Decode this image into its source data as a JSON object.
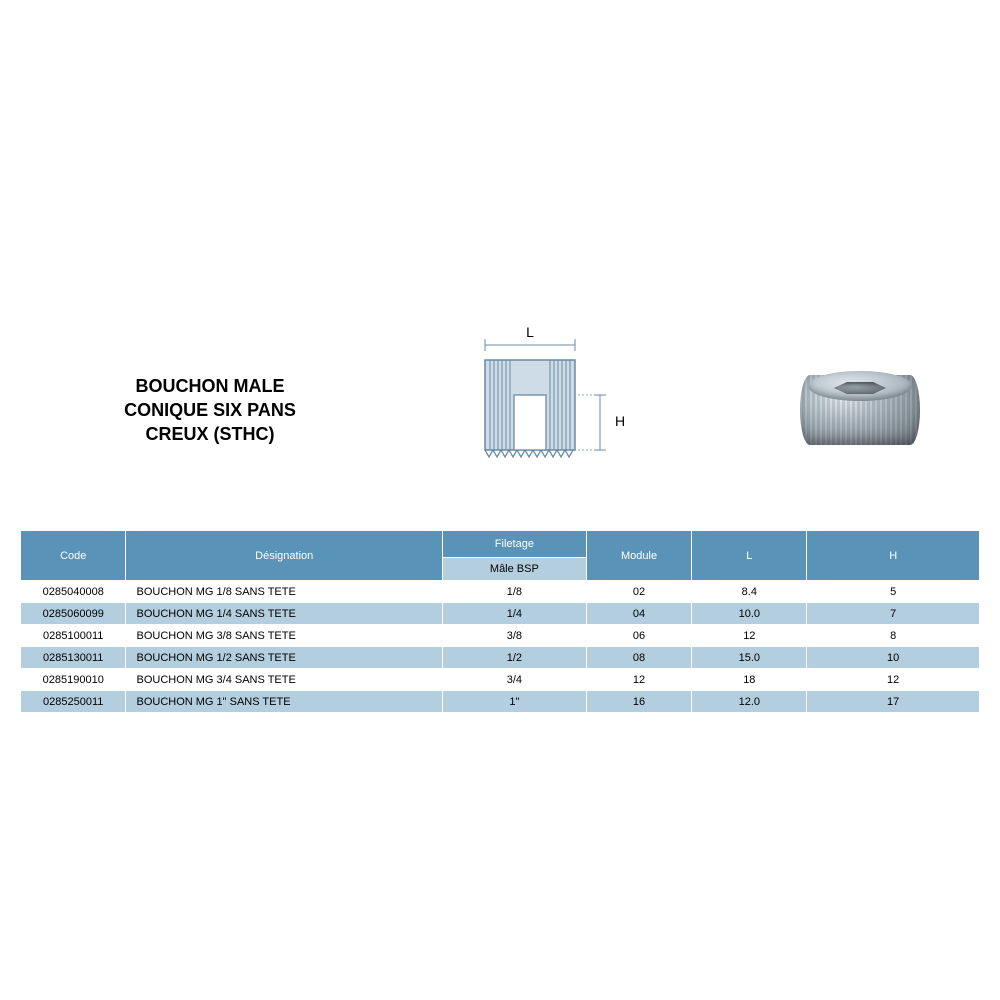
{
  "title": {
    "line1": "BOUCHON MALE",
    "line2": "CONIQUE SIX PANS",
    "line3": "CREUX (STHC)"
  },
  "diagram": {
    "label_L": "L",
    "label_H": "H",
    "stroke_color": "#6a8aa3",
    "fill_light": "#cddce7",
    "fill_dark": "#aec4d4"
  },
  "photo": {
    "alt": "bouchon-hex-socket-plug"
  },
  "table": {
    "header_bg": "#5a93b8",
    "header_fg": "#ffffff",
    "alt_row_bg": "#b3cedf",
    "columns": [
      {
        "key": "code",
        "label": "Code",
        "width_pct": 11,
        "align": "center"
      },
      {
        "key": "desig",
        "label": "Désignation",
        "width_pct": 33,
        "align": "left"
      },
      {
        "key": "filetage",
        "label": "Filetage",
        "sublabel": "Mâle BSP",
        "width_pct": 15,
        "align": "center"
      },
      {
        "key": "module",
        "label": "Module",
        "width_pct": 11,
        "align": "center"
      },
      {
        "key": "L",
        "label": "L",
        "width_pct": 12,
        "align": "center"
      },
      {
        "key": "H",
        "label": "H",
        "width_pct": 18,
        "align": "center"
      }
    ],
    "rows": [
      {
        "code": "0285040008",
        "desig": "BOUCHON MG 1/8 SANS TETE",
        "filetage": "1/8",
        "module": "02",
        "L": "8.4",
        "H": "5"
      },
      {
        "code": "0285060099",
        "desig": "BOUCHON MG 1/4 SANS TETE",
        "filetage": "1/4",
        "module": "04",
        "L": "10.0",
        "H": "7"
      },
      {
        "code": "0285100011",
        "desig": "BOUCHON MG 3/8 SANS TETE",
        "filetage": "3/8",
        "module": "06",
        "L": "12",
        "H": "8"
      },
      {
        "code": "0285130011",
        "desig": "BOUCHON MG 1/2 SANS TETE",
        "filetage": "1/2",
        "module": "08",
        "L": "15.0",
        "H": "10"
      },
      {
        "code": "0285190010",
        "desig": "BOUCHON MG 3/4 SANS TETE",
        "filetage": "3/4",
        "module": "12",
        "L": "18",
        "H": "12"
      },
      {
        "code": "0285250011",
        "desig": "BOUCHON MG 1\" SANS TETE",
        "filetage": "1\"",
        "module": "16",
        "L": "12.0",
        "H": "17"
      }
    ]
  }
}
